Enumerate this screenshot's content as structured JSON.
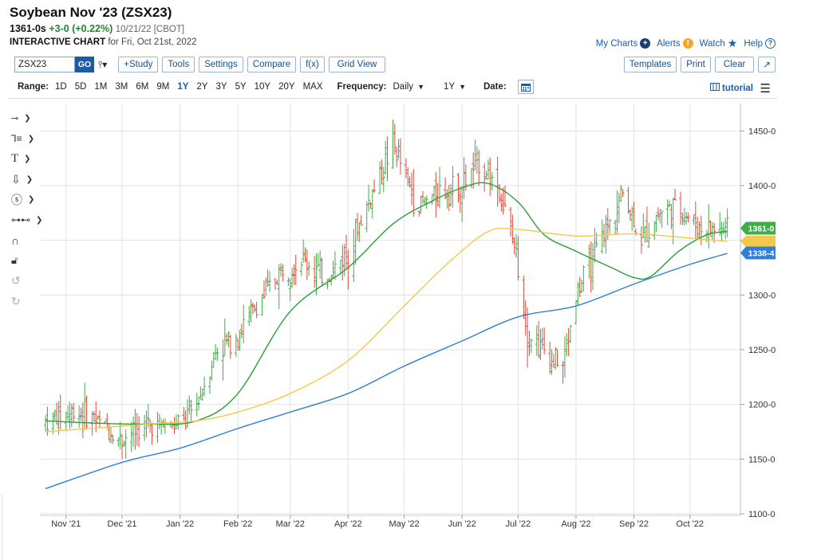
{
  "header": {
    "title": "Soybean Nov '23 (ZSX23)",
    "last": "1361-0s",
    "change": "+3-0 (+0.22%)",
    "quote_meta": "10/21/22 [CBOT]",
    "subtitle_bold": "INTERACTIVE CHART",
    "subtitle_date": "for Fri, Oct 21st, 2022"
  },
  "toplinks": {
    "my_charts": "My Charts",
    "alerts": "Alerts",
    "watch": "Watch",
    "help": "Help"
  },
  "toolbar": {
    "symbol_value": "ZSX23",
    "go": "GO",
    "study": "+Study",
    "tools": "Tools",
    "settings": "Settings",
    "compare": "Compare",
    "fx": "f(x)",
    "grid_view": "Grid View",
    "templates": "Templates",
    "print": "Print",
    "clear": "Clear"
  },
  "rangebar": {
    "range_label": "Range:",
    "ranges": [
      "1D",
      "5D",
      "1M",
      "3M",
      "6M",
      "9M",
      "1Y",
      "2Y",
      "3Y",
      "5Y",
      "10Y",
      "20Y",
      "MAX"
    ],
    "selected_range": "1Y",
    "frequency_label": "Frequency:",
    "frequency_value": "Daily",
    "period_value": "1Y",
    "date_label": "Date:",
    "tutorial": "tutorial"
  },
  "colors": {
    "up_bar": "#3fae49",
    "down_bar": "#e8473a",
    "ma_green": "#2e9e3a",
    "ma_yellow": "#f2c94c",
    "ma_blue": "#2f7fd6",
    "link": "#1a5fa8",
    "go_button": "#1f5aa6"
  },
  "chart_data": {
    "type": "ohlc",
    "title": "Soybean Nov '23 (ZSX23)",
    "ylim": [
      1100,
      1475
    ],
    "y_ticks": [
      "1100-0",
      "1150-0",
      "1200-0",
      "1250-0",
      "1300-0",
      "1350-0",
      "1400-0",
      "1450-0"
    ],
    "x_ticks": [
      "Nov '21",
      "Dec '21",
      "Jan '22",
      "Feb '22",
      "Mar '22",
      "Apr '22",
      "May '22",
      "Jun '22",
      "Jul '22",
      "Aug '22",
      "Sep '22",
      "Oct '22"
    ],
    "grid": true,
    "price_path": {
      "dates": [
        "2021-10-21",
        "2021-11-08",
        "2021-11-22",
        "2021-11-30",
        "2021-12-15",
        "2022-01-01",
        "2022-01-10",
        "2022-01-20",
        "2022-02-01",
        "2022-02-15",
        "2022-02-24",
        "2022-03-08",
        "2022-03-20",
        "2022-04-01",
        "2022-04-12",
        "2022-04-25",
        "2022-05-08",
        "2022-05-20",
        "2022-06-01",
        "2022-06-10",
        "2022-06-20",
        "2022-06-30",
        "2022-07-06",
        "2022-07-15",
        "2022-07-25",
        "2022-08-01",
        "2022-08-10",
        "2022-08-20",
        "2022-08-26",
        "2022-09-05",
        "2022-09-15",
        "2022-09-25",
        "2022-10-05",
        "2022-10-12",
        "2022-10-21"
      ],
      "closes": [
        1185,
        1195,
        1180,
        1168,
        1182,
        1180,
        1200,
        1248,
        1265,
        1300,
        1322,
        1332,
        1315,
        1340,
        1385,
        1438,
        1380,
        1395,
        1400,
        1422,
        1400,
        1338,
        1265,
        1250,
        1235,
        1300,
        1333,
        1370,
        1395,
        1350,
        1378,
        1380,
        1362,
        1360,
        1361
      ]
    },
    "series": [
      {
        "name": "",
        "color": "#2e9e3a",
        "dates": [
          "2021-10-21",
          "2021-11-15",
          "2021-12-15",
          "2022-01-10",
          "2022-02-01",
          "2022-03-01",
          "2022-04-01",
          "2022-04-25",
          "2022-05-15",
          "2022-06-01",
          "2022-06-15",
          "2022-07-01",
          "2022-07-15",
          "2022-08-01",
          "2022-08-20",
          "2022-09-01",
          "2022-09-10",
          "2022-09-25",
          "2022-10-10",
          "2022-10-21"
        ],
        "values": [
          1185,
          1183,
          1182,
          1185,
          1210,
          1285,
          1325,
          1365,
          1385,
          1398,
          1402,
          1385,
          1355,
          1340,
          1325,
          1316,
          1317,
          1340,
          1355,
          1358
        ]
      },
      {
        "name": "",
        "color": "#f2c94c",
        "dates": [
          "2021-10-21",
          "2021-12-15",
          "2022-01-10",
          "2022-02-01",
          "2022-03-01",
          "2022-04-01",
          "2022-05-01",
          "2022-05-25",
          "2022-06-15",
          "2022-07-01",
          "2022-08-01",
          "2022-09-01",
          "2022-10-01",
          "2022-10-21"
        ],
        "values": [
          1175,
          1182,
          1185,
          1193,
          1210,
          1240,
          1290,
          1330,
          1358,
          1360,
          1354,
          1356,
          1352,
          1349
        ]
      },
      {
        "name": "",
        "color": "#2f7fd6",
        "dates": [
          "2021-10-21",
          "2021-12-01",
          "2022-01-01",
          "2022-02-01",
          "2022-03-01",
          "2022-04-01",
          "2022-05-01",
          "2022-06-01",
          "2022-07-01",
          "2022-08-01",
          "2022-09-01",
          "2022-10-01",
          "2022-10-21"
        ],
        "values": [
          1123,
          1147,
          1160,
          1178,
          1193,
          1210,
          1235,
          1258,
          1280,
          1290,
          1310,
          1328,
          1338
        ]
      }
    ],
    "price_tags": [
      {
        "label": "1361-0",
        "value": 1361,
        "color": "#3fae49"
      },
      {
        "label": "1338-4",
        "value": 1338.5,
        "color": "#2f7fd6"
      }
    ]
  }
}
